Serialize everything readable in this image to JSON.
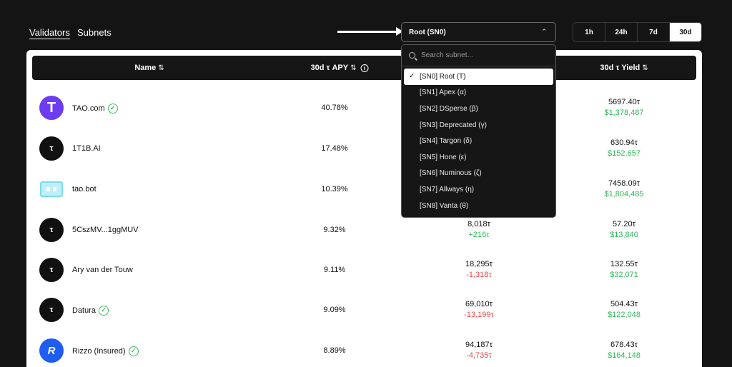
{
  "nav": {
    "tabs": [
      {
        "label": "Validators",
        "active": true
      },
      {
        "label": "Subnets",
        "active": false
      }
    ]
  },
  "subnet_select": {
    "value": "Root (SN0)"
  },
  "periods": [
    {
      "label": "1h",
      "active": false
    },
    {
      "label": "24h",
      "active": false
    },
    {
      "label": "7d",
      "active": false
    },
    {
      "label": "30d",
      "active": true
    }
  ],
  "table": {
    "headers": {
      "name": "Name",
      "apy": "30d τ APY",
      "yield": "30d τ Yield"
    },
    "rows": [
      {
        "name": "TAO.com",
        "avatar": "T",
        "avatar_type": "tao",
        "verified": true,
        "apy": "40.78%",
        "stake": "",
        "stake_change": "",
        "yield": "5697.40τ",
        "yield_usd": "$1,378,487"
      },
      {
        "name": "1T1B.AI",
        "avatar": "τ",
        "avatar_type": "tau",
        "verified": false,
        "apy": "17.48%",
        "stake": "",
        "stake_change": "",
        "yield": "630.94τ",
        "yield_usd": "$152,657"
      },
      {
        "name": "tao.bot",
        "avatar": "",
        "avatar_type": "bot",
        "verified": false,
        "apy": "10.39%",
        "stake": "",
        "stake_change": "",
        "yield": "7458.09τ",
        "yield_usd": "$1,804,485"
      },
      {
        "name": "5CszMV...1ggMUV",
        "avatar": "τ",
        "avatar_type": "tau",
        "verified": false,
        "apy": "9.32%",
        "stake": "8,018τ",
        "stake_change": "+216τ",
        "stake_dir": "pos",
        "yield": "57.20τ",
        "yield_usd": "$13,840"
      },
      {
        "name": "Ary van der Touw",
        "avatar": "τ",
        "avatar_type": "tau",
        "verified": false,
        "apy": "9.11%",
        "stake": "18,295τ",
        "stake_change": "-1,318τ",
        "stake_dir": "neg",
        "yield": "132.55τ",
        "yield_usd": "$32,071"
      },
      {
        "name": "Datura",
        "avatar": "τ",
        "avatar_type": "tau",
        "verified": true,
        "apy": "9.09%",
        "stake": "69,010τ",
        "stake_change": "-13,199τ",
        "stake_dir": "neg",
        "yield": "504.43τ",
        "yield_usd": "$122,048"
      },
      {
        "name": "Rizzo (Insured)",
        "avatar": "R",
        "avatar_type": "rizzo",
        "verified": true,
        "apy": "8.89%",
        "stake": "94,187τ",
        "stake_change": "-4,735τ",
        "stake_dir": "neg",
        "yield": "678.43τ",
        "yield_usd": "$164,148"
      }
    ]
  },
  "dropdown": {
    "search_placeholder": "Search subnet...",
    "items": [
      {
        "label": "[SN0] Root (T)",
        "selected": true
      },
      {
        "label": "[SN1] Apex (α)",
        "selected": false
      },
      {
        "label": "[SN2] DSperse (β)",
        "selected": false
      },
      {
        "label": "[SN3] Deprecated (γ)",
        "selected": false
      },
      {
        "label": "[SN4] Targon (δ)",
        "selected": false
      },
      {
        "label": "[SN5] Hone (ε)",
        "selected": false
      },
      {
        "label": "[SN6] Numinous (ζ)",
        "selected": false
      },
      {
        "label": "[SN7] Allways (η)",
        "selected": false
      },
      {
        "label": "[SN8] Vanta (θ)",
        "selected": false
      }
    ]
  },
  "icons": {
    "sort": "sort-arrows-icon",
    "info": "info-icon",
    "verified": "verified-check-icon",
    "search": "search-icon",
    "chevron": "chevron-up-down-icon",
    "check": "check-icon",
    "arrow": "pointer-arrow-icon"
  },
  "colors": {
    "background": "#141414",
    "positive": "#2fb955",
    "negative": "#e24a4a",
    "tao_brand": "#6c3cf0",
    "rizzo_brand": "#1f5cf0"
  }
}
